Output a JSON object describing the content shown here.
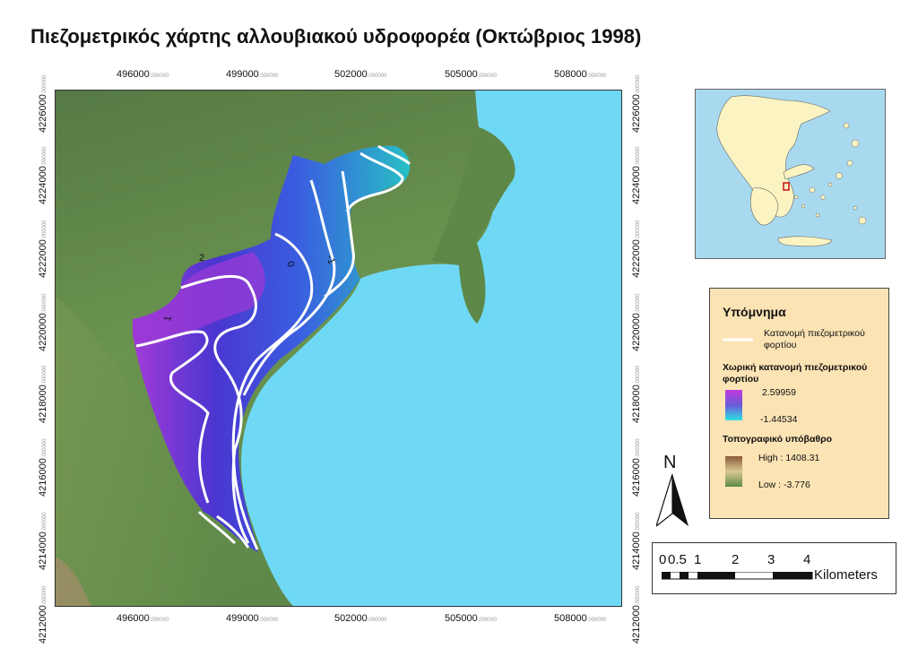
{
  "title": "Πιεζομετρικός χάρτης αλλουβιακού υδροφορέα (Οκτώβριος 1998)",
  "axes": {
    "x_ticks": [
      "496000",
      "499000",
      "502000",
      "505000",
      "508000"
    ],
    "y_ticks": [
      "4226000",
      "4224000",
      "4222000",
      "4220000",
      "4218000",
      "4216000",
      "4214000",
      "4212000"
    ],
    "tick_suffix": ".000000"
  },
  "contour_labels": [
    "2",
    "1",
    "0",
    "-1"
  ],
  "legend": {
    "title": "Υπόμνημα",
    "contour_line_label": "Κατανομή πιεζομετρικού φορτίου",
    "spatial_title": "Χωρική κατανομή πιεζομετρικού φορτίου",
    "spatial_high": "2.59959",
    "spatial_low": "-1.44534",
    "topo_title": "Τοπογραφικό υπόβαθρο",
    "topo_high": "High : 1408.31",
    "topo_low": "Low : -3.776"
  },
  "north_label": "N",
  "scale_bar": {
    "labels": [
      "0",
      "0.5",
      "1",
      "2",
      "3",
      "4"
    ],
    "unit": "Kilometers"
  },
  "colors": {
    "sea": "#6fd9f5",
    "land": "#5d8a4a",
    "head_high": "#b23ad6",
    "head_low": "#2ec4c4",
    "contour": "#ffffff",
    "legend_bg": "#fbe3b4",
    "inset_sea": "#a9d9ef",
    "inset_land": "#fbf4c2"
  }
}
